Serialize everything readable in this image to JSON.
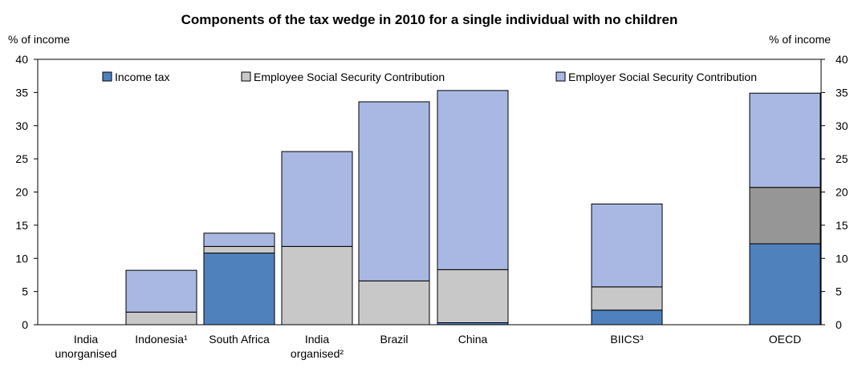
{
  "chart_data": {
    "type": "bar",
    "stacked": true,
    "title": "Components of the tax wedge in 2010 for a single individual with no children",
    "ylabel_left": "% of income",
    "ylabel_right": "% of income",
    "ylim": [
      0,
      40
    ],
    "yticks": [
      0,
      5,
      10,
      15,
      20,
      25,
      30,
      35,
      40
    ],
    "grid": false,
    "legend": "top",
    "categories": [
      [
        "India",
        "unorganised"
      ],
      [
        "Indonesia¹"
      ],
      [
        "South Africa"
      ],
      [
        "India",
        "organised²"
      ],
      [
        "Brazil"
      ],
      [
        "China"
      ],
      [
        "BIICS³"
      ],
      [
        "OECD"
      ]
    ],
    "series": [
      {
        "name": "Income tax",
        "color": "#4f81bd",
        "values": [
          0,
          0,
          10.8,
          0,
          0,
          0.3,
          2.2,
          12.2
        ]
      },
      {
        "name": "Employee Social Security Contribution",
        "color": "#c8c8c8",
        "values": [
          0,
          1.9,
          1.0,
          11.8,
          6.6,
          8.0,
          3.5,
          8.5
        ]
      },
      {
        "name": "Employer Social Security Contribution",
        "color": "#a9b8e2",
        "values": [
          0,
          6.3,
          2.0,
          14.3,
          27.0,
          27.0,
          12.5,
          14.2
        ]
      }
    ],
    "special_colors": {
      "OECD": [
        "#4f81bd",
        "#969696",
        "#a9b8e2"
      ]
    }
  }
}
